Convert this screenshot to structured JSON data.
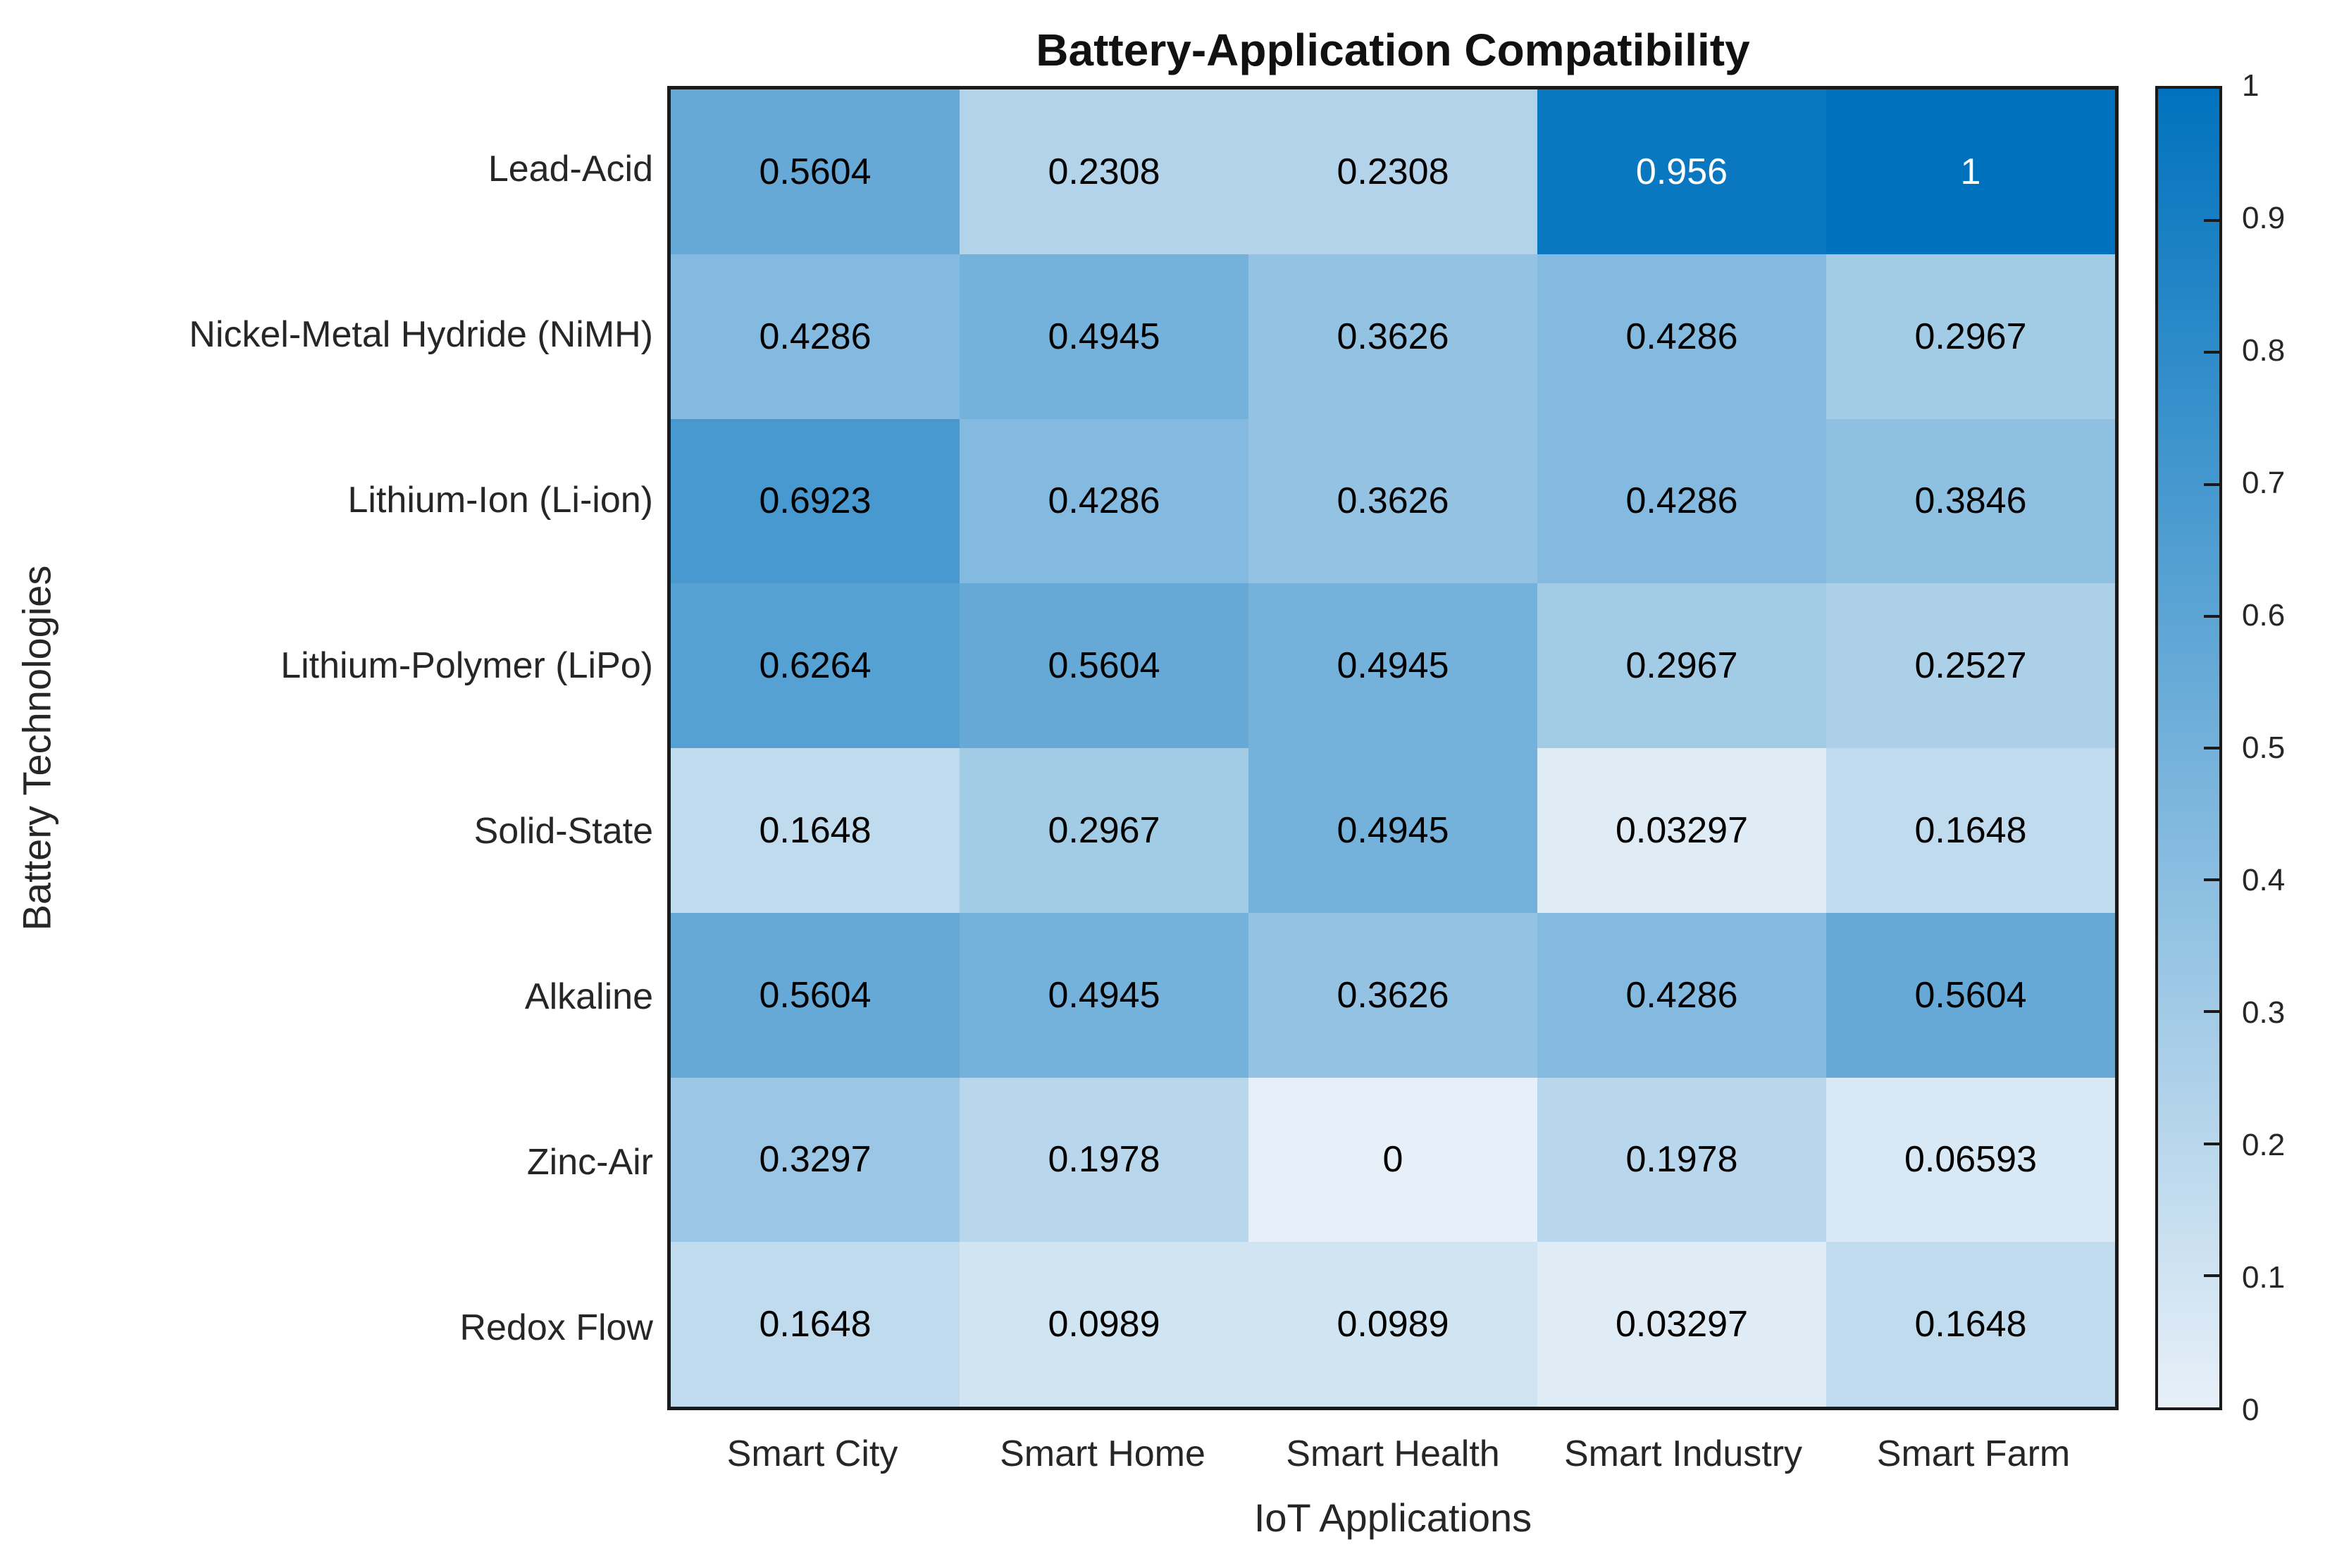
{
  "chart_data": {
    "type": "heatmap",
    "title": "Battery-Application Compatibility",
    "xlabel": "IoT Applications",
    "ylabel": "Battery Technologies",
    "columns": [
      "Smart City",
      "Smart Home",
      "Smart Health",
      "Smart Industry",
      "Smart Farm"
    ],
    "rows": [
      "Lead-Acid",
      "Nickel-Metal Hydride (NiMH)",
      "Lithium-Ion (Li-ion)",
      "Lithium-Polymer (LiPo)",
      "Solid-State",
      "Alkaline",
      "Zinc-Air",
      "Redox Flow"
    ],
    "values": [
      [
        "0.5604",
        "0.2308",
        "0.2308",
        "0.956",
        "1"
      ],
      [
        "0.4286",
        "0.4945",
        "0.3626",
        "0.4286",
        "0.2967"
      ],
      [
        "0.6923",
        "0.4286",
        "0.3626",
        "0.4286",
        "0.3846"
      ],
      [
        "0.6264",
        "0.5604",
        "0.4945",
        "0.2967",
        "0.2527"
      ],
      [
        "0.1648",
        "0.2967",
        "0.4945",
        "0.03297",
        "0.1648"
      ],
      [
        "0.5604",
        "0.4945",
        "0.3626",
        "0.4286",
        "0.5604"
      ],
      [
        "0.3297",
        "0.1978",
        "0",
        "0.1978",
        "0.06593"
      ],
      [
        "0.1648",
        "0.0989",
        "0.0989",
        "0.03297",
        "0.1648"
      ]
    ],
    "colorbar": {
      "min": 0,
      "max": 1,
      "tick_labels": [
        "0",
        "0.1",
        "0.2",
        "0.3",
        "0.4",
        "0.5",
        "0.6",
        "0.7",
        "0.8",
        "0.9",
        "1"
      ],
      "color_low": "#e7f0f8",
      "color_high": "#0072bd"
    },
    "cell_text_color_dark": "#000000",
    "cell_text_color_light": "#ffffff",
    "light_text_threshold": 0.75,
    "legend_position": "right",
    "grid": false
  }
}
